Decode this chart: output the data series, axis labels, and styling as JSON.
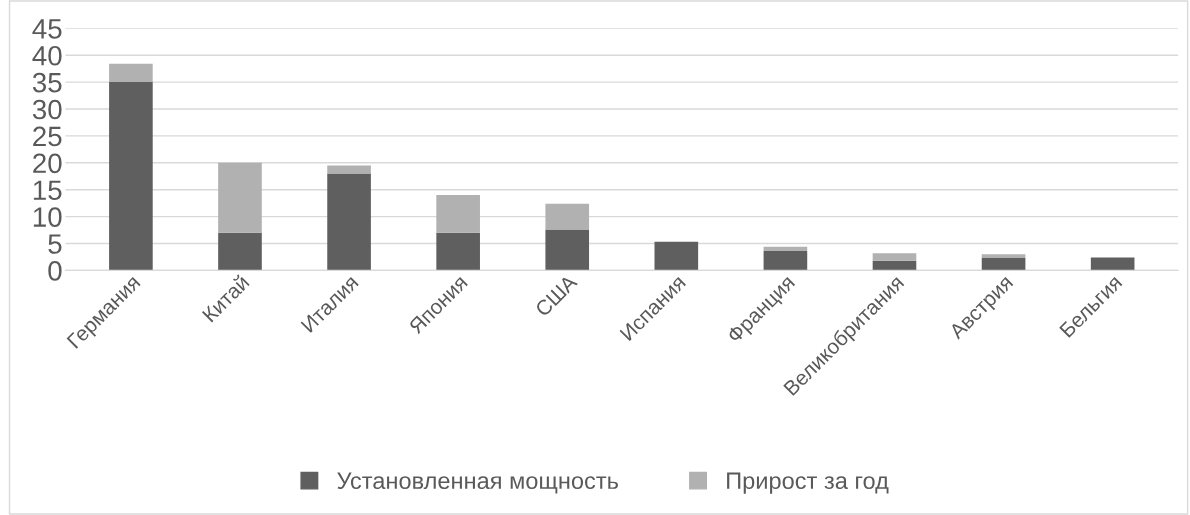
{
  "chart_data": {
    "type": "bar",
    "stacked": true,
    "categories": [
      "Германия",
      "Китай",
      "Италия",
      "Япония",
      "США",
      "Испания",
      "Франция",
      "Великобритания",
      "Австрия",
      "Бельгия"
    ],
    "series": [
      {
        "name": "Установленная мощность",
        "color": "#5f5f5f",
        "values": [
          35,
          7,
          18,
          7,
          7.6,
          5.3,
          3.6,
          1.8,
          2.4,
          2.4
        ]
      },
      {
        "name": "Прирост за год",
        "color": "#b1b1b1",
        "values": [
          3.4,
          13,
          1.5,
          7,
          4.8,
          null,
          0.8,
          1.4,
          0.6,
          0
        ]
      }
    ],
    "ylim": [
      0,
      45
    ],
    "yticks": [
      0,
      5,
      10,
      15,
      20,
      25,
      30,
      35,
      40,
      45
    ],
    "grid": "y",
    "legend": "bottom"
  }
}
